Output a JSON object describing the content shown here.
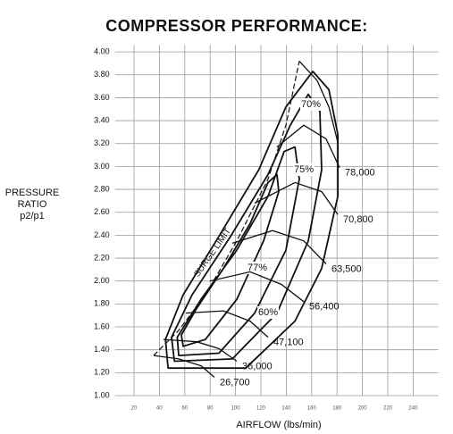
{
  "chart_data": {
    "type": "compressor-map",
    "title": "COMPRESSOR PERFORMANCE:",
    "y_label": [
      "PRESSURE",
      "RATIO",
      "p2/p1"
    ],
    "x_label": "AIRFLOW (lbs/min)",
    "color": "#111111",
    "grid": true,
    "xlim": [
      5,
      260
    ],
    "ylim": [
      1.0,
      4.06
    ],
    "xticks": [
      20,
      40,
      60,
      80,
      100,
      120,
      140,
      160,
      180,
      200,
      220,
      240
    ],
    "yticks": [
      {
        "value": 1.0,
        "label": "1.00"
      },
      {
        "value": 1.2,
        "label": "1.20"
      },
      {
        "value": 1.4,
        "label": "1.40"
      },
      {
        "value": 1.6,
        "label": "1.60"
      },
      {
        "value": 1.8,
        "label": "1.80"
      },
      {
        "value": 2.0,
        "label": "2.00"
      },
      {
        "value": 2.2,
        "label": "2.20"
      },
      {
        "value": 2.4,
        "label": "2.40"
      },
      {
        "value": 2.6,
        "label": "2.60"
      },
      {
        "value": 2.8,
        "label": "2.80"
      },
      {
        "value": 3.0,
        "label": "3.00"
      },
      {
        "value": 3.2,
        "label": "3.20"
      },
      {
        "value": 3.4,
        "label": "3.40"
      },
      {
        "value": 3.6,
        "label": "3.60"
      },
      {
        "value": 3.8,
        "label": "3.80"
      },
      {
        "value": 4.0,
        "label": "4.00"
      }
    ],
    "surge_line": {
      "name": "SURGE LIMIT",
      "x": [
        35.5,
        55.2,
        76.3,
        101.0,
        125.6,
        139.7,
        150.3
      ],
      "values": [
        1.35,
        1.57,
        1.88,
        2.35,
        2.89,
        3.36,
        3.92
      ]
    },
    "series": [
      {
        "name": "26,700",
        "x": [
          35.5,
          55.2,
          72.8,
          83.4
        ],
        "values": [
          1.35,
          1.32,
          1.26,
          1.16
        ]
      },
      {
        "name": "36,000",
        "x": [
          43.2,
          69.3,
          86.9,
          101.0
        ],
        "values": [
          1.49,
          1.47,
          1.41,
          1.3
        ]
      },
      {
        "name": "47,100",
        "x": [
          60.8,
          90.4,
          111.5,
          125.6
        ],
        "values": [
          1.72,
          1.74,
          1.65,
          1.51
        ]
      },
      {
        "name": "56,400",
        "x": [
          79.9,
          111.5,
          136.2,
          153.8
        ],
        "values": [
          2.0,
          2.08,
          1.97,
          1.82
        ]
      },
      {
        "name": "63,500",
        "x": [
          97.5,
          129.2,
          153.8,
          171.4
        ],
        "values": [
          2.33,
          2.44,
          2.35,
          2.15
        ]
      },
      {
        "name": "70,800",
        "x": [
          115.1,
          146.8,
          167.9,
          180.6
        ],
        "values": [
          2.68,
          2.86,
          2.78,
          2.58
        ]
      },
      {
        "name": "78,000",
        "x": [
          132.7,
          153.8,
          171.4,
          182.0
        ],
        "values": [
          3.17,
          3.36,
          3.24,
          2.99
        ]
      },
      {
        "x": [
          150.3,
          164.4,
          173.6,
          180.6
        ],
        "values": [
          3.92,
          3.75,
          3.52,
          3.21
        ]
      }
    ],
    "efficiency_islands": [
      {
        "name": "77%",
        "x": [
          58.7,
          76.3,
          101.0,
          122.1,
          134.1,
          132.7,
          125.6,
          111.5,
          90.4,
          69.3,
          57.3
        ],
        "values": [
          1.43,
          1.49,
          1.84,
          2.35,
          2.78,
          2.93,
          2.86,
          2.5,
          2.11,
          1.76,
          1.53
        ]
      },
      {
        "name": "75%",
        "x": [
          55.2,
          86.9,
          115.1,
          139.7,
          150.3,
          146.8,
          138.3,
          125.6,
          101.0,
          72.8,
          54.1
        ],
        "values": [
          1.35,
          1.37,
          1.72,
          2.27,
          2.89,
          3.17,
          3.13,
          2.74,
          2.27,
          1.84,
          1.51
        ]
      },
      {
        "name": "70%",
        "x": [
          51.8,
          97.5,
          132.7,
          157.3,
          167.9,
          166.5,
          157.3,
          143.2,
          125.6,
          96.1,
          65.8,
          49.6
        ],
        "values": [
          1.3,
          1.32,
          1.72,
          2.35,
          2.97,
          3.48,
          3.63,
          3.36,
          2.93,
          2.39,
          1.88,
          1.51
        ]
      },
      {
        "name": "60%",
        "x": [
          46.8,
          108.0,
          146.8,
          167.9,
          180.6,
          180.6,
          173.6,
          160.9,
          139.7,
          118.3,
          86.9,
          58.7,
          44.8
        ],
        "values": [
          1.24,
          1.24,
          1.65,
          2.11,
          2.74,
          3.28,
          3.67,
          3.83,
          3.52,
          2.97,
          2.39,
          1.88,
          1.49
        ]
      }
    ]
  }
}
